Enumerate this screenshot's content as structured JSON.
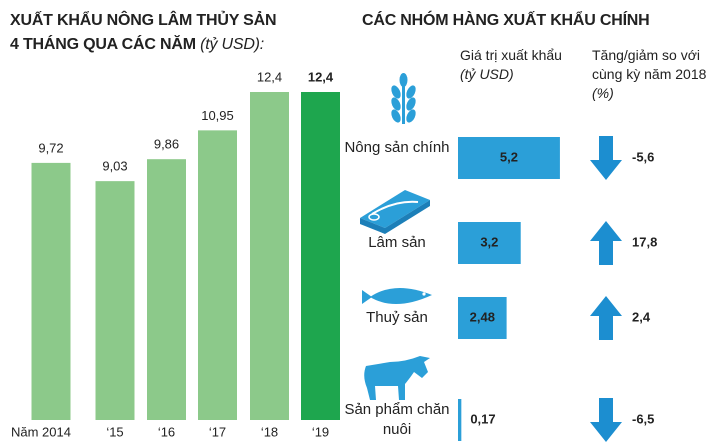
{
  "chart_data": [
    {
      "type": "bar",
      "title": "XUẤT KHẨU NÔNG LÂM THỦY SẢN",
      "subtitle": "4 THÁNG QUA CÁC NĂM",
      "unit": "(tỷ USD):",
      "categories": [
        "Năm 2014",
        "‘15",
        "‘16",
        "‘17",
        "‘18",
        "‘19"
      ],
      "values": [
        9.72,
        9.03,
        9.86,
        10.95,
        12.4,
        12.4
      ],
      "value_labels": [
        "9,72",
        "9,03",
        "9,86",
        "10,95",
        "12,4",
        "12,4"
      ],
      "color": "#8cc98a",
      "highlight_color": "#1ea64e"
    },
    {
      "type": "hbar",
      "title": "CÁC NHÓM HÀNG XUẤT KHẨU CHÍNH",
      "categories": [
        "Nông sản chính",
        "Lâm sản",
        "Thuỷ sản",
        "Sản phẩm chăn nuôi"
      ],
      "series": [
        {
          "name": "Giá trị xuất khẩu",
          "unit": "(tỷ USD)",
          "color": "#2b9fd8",
          "values": [
            5.2,
            3.2,
            2.48,
            0.17
          ],
          "value_labels": [
            "5,2",
            "3,2",
            "2,48",
            "0,17"
          ]
        },
        {
          "name": "Tăng/giảm so với cùng kỳ năm 2018",
          "unit": "(%)",
          "color": "#1c8ed0",
          "values": [
            -5.6,
            17.8,
            2.4,
            -6.5
          ],
          "value_labels": [
            "-5,6",
            "17,8",
            "2,4",
            "-6,5"
          ]
        }
      ]
    }
  ]
}
